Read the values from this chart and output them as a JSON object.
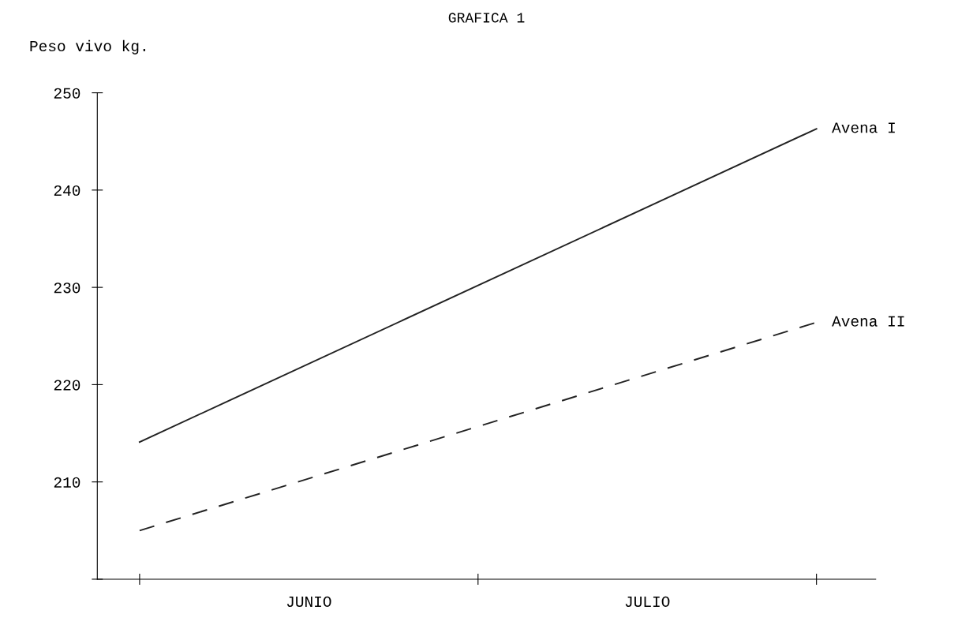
{
  "chart_data": {
    "type": "line",
    "title": "GRAFICA 1",
    "ylabel": "Peso vivo kg.",
    "categories": [
      null,
      "JUNIO",
      null,
      "JULIO",
      null
    ],
    "series": [
      {
        "name": "Avena I",
        "color": "#222222",
        "values": [
          214.1,
          null,
          null,
          null,
          246.3
        ],
        "line_style": "solid"
      },
      {
        "name": "Avena II",
        "color": "#222222",
        "values": [
          205.0,
          null,
          null,
          null,
          226.4
        ],
        "line_style": "dashed"
      }
    ],
    "ylim": [
      200,
      250
    ],
    "yticks": [
      {
        "value": 200,
        "label": null
      },
      210,
      220,
      230,
      240,
      250
    ],
    "grid": false,
    "legend": false,
    "marker": "none"
  }
}
